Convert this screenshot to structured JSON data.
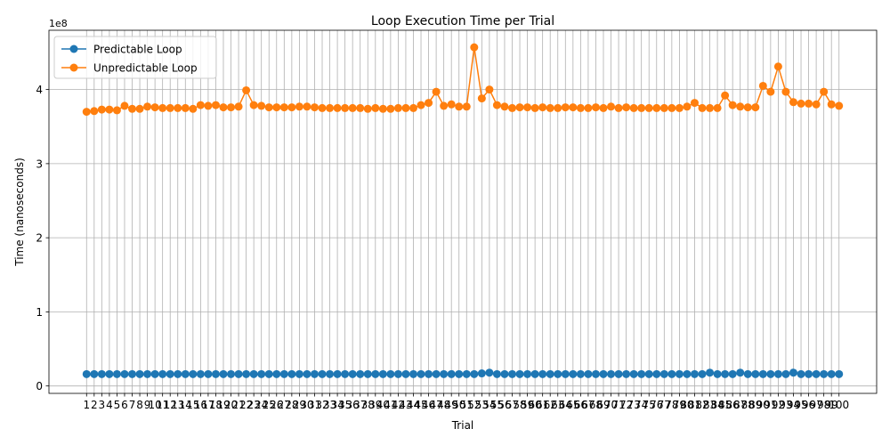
{
  "chart_data": {
    "type": "line",
    "title": "Loop Execution Time per Trial",
    "xlabel": "Trial",
    "ylabel": "Time (nanoseconds)",
    "y_offset_text": "1e8",
    "y_scale_factor": 100000000,
    "ylim": [
      -10000000,
      480000000
    ],
    "xlim": [
      -3.95,
      104.95
    ],
    "y_ticks": [
      0,
      100000000,
      200000000,
      300000000,
      400000000
    ],
    "y_tick_labels": [
      "0",
      "1",
      "2",
      "3",
      "4"
    ],
    "grid": true,
    "legend_position": "top-left",
    "x": [
      1,
      2,
      3,
      4,
      5,
      6,
      7,
      8,
      9,
      10,
      11,
      12,
      13,
      14,
      15,
      16,
      17,
      18,
      19,
      20,
      21,
      22,
      23,
      24,
      25,
      26,
      27,
      28,
      29,
      30,
      31,
      32,
      33,
      34,
      35,
      36,
      37,
      38,
      39,
      40,
      41,
      42,
      43,
      44,
      45,
      46,
      47,
      48,
      49,
      50,
      51,
      52,
      53,
      54,
      55,
      56,
      57,
      58,
      59,
      60,
      61,
      62,
      63,
      64,
      65,
      66,
      67,
      68,
      69,
      70,
      71,
      72,
      73,
      74,
      75,
      76,
      77,
      78,
      79,
      80,
      81,
      82,
      83,
      84,
      85,
      86,
      87,
      88,
      89,
      90,
      91,
      92,
      93,
      94,
      95,
      96,
      97,
      98,
      99,
      100
    ],
    "series": [
      {
        "name": "Predictable Loop",
        "color": "#1f77b4",
        "values": [
          16000000,
          16000000,
          16000000,
          16000000,
          16000000,
          16000000,
          16000000,
          16000000,
          16000000,
          16000000,
          16000000,
          16000000,
          16000000,
          16000000,
          16000000,
          16000000,
          16000000,
          16000000,
          16000000,
          16000000,
          16000000,
          16000000,
          16000000,
          16000000,
          16000000,
          16000000,
          16000000,
          16000000,
          16000000,
          16000000,
          16000000,
          16000000,
          16000000,
          16000000,
          16000000,
          16000000,
          16000000,
          16000000,
          16000000,
          16000000,
          16000000,
          16000000,
          16000000,
          16000000,
          16000000,
          16000000,
          16000000,
          16000000,
          16000000,
          16000000,
          16000000,
          16000000,
          17000000,
          18000000,
          16000000,
          16000000,
          16000000,
          16000000,
          16000000,
          16000000,
          16000000,
          16000000,
          16000000,
          16000000,
          16000000,
          16000000,
          16000000,
          16000000,
          16000000,
          16000000,
          16000000,
          16000000,
          16000000,
          16000000,
          16000000,
          16000000,
          16000000,
          16000000,
          16000000,
          16000000,
          16000000,
          16000000,
          18000000,
          16000000,
          16000000,
          16000000,
          18000000,
          16000000,
          16000000,
          16000000,
          16000000,
          16000000,
          16000000,
          18000000,
          16000000,
          16000000,
          16000000,
          16000000,
          16000000,
          16000000
        ]
      },
      {
        "name": "Unpredictable Loop",
        "color": "#ff7f0e",
        "values": [
          370000000,
          371000000,
          373000000,
          373000000,
          372000000,
          378000000,
          374000000,
          374000000,
          377000000,
          376000000,
          375000000,
          375000000,
          375000000,
          375000000,
          374000000,
          379000000,
          378000000,
          379000000,
          376000000,
          376000000,
          377000000,
          399000000,
          379000000,
          378000000,
          376000000,
          376000000,
          376000000,
          376000000,
          377000000,
          377000000,
          376000000,
          375000000,
          375000000,
          375000000,
          375000000,
          375000000,
          375000000,
          374000000,
          375000000,
          374000000,
          374000000,
          375000000,
          375000000,
          375000000,
          379000000,
          382000000,
          397000000,
          378000000,
          380000000,
          377000000,
          377000000,
          457000000,
          388000000,
          400000000,
          379000000,
          377000000,
          375000000,
          376000000,
          376000000,
          375000000,
          376000000,
          375000000,
          375000000,
          376000000,
          376000000,
          375000000,
          375000000,
          376000000,
          375000000,
          377000000,
          375000000,
          376000000,
          375000000,
          375000000,
          375000000,
          375000000,
          375000000,
          375000000,
          375000000,
          377000000,
          382000000,
          375000000,
          375000000,
          375000000,
          392000000,
          379000000,
          377000000,
          376000000,
          376000000,
          405000000,
          397000000,
          431000000,
          397000000,
          383000000,
          381000000,
          381000000,
          380000000,
          397000000,
          380000000,
          378000000
        ]
      }
    ]
  }
}
